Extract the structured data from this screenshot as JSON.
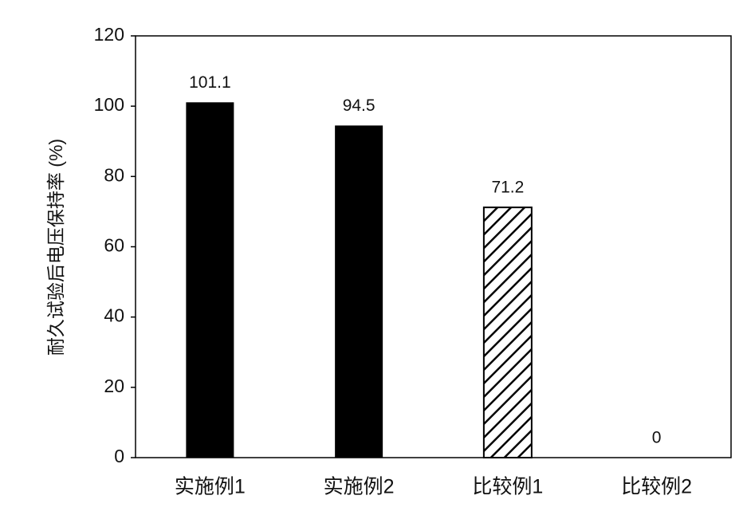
{
  "chart_data": {
    "type": "bar",
    "y_label": "耐久试验后电压保持率 (%)",
    "categories": [
      "实施例1",
      "实施例2",
      "比较例1",
      "比较例2"
    ],
    "values": [
      101.1,
      94.5,
      71.2,
      0
    ],
    "color": "#000000",
    "patterns": [
      "solid",
      "solid",
      "hatch",
      "solid"
    ],
    "ylim": [
      0,
      120
    ],
    "yticks": [
      0,
      20,
      40,
      60,
      80,
      100,
      120
    ],
    "grid": false
  }
}
